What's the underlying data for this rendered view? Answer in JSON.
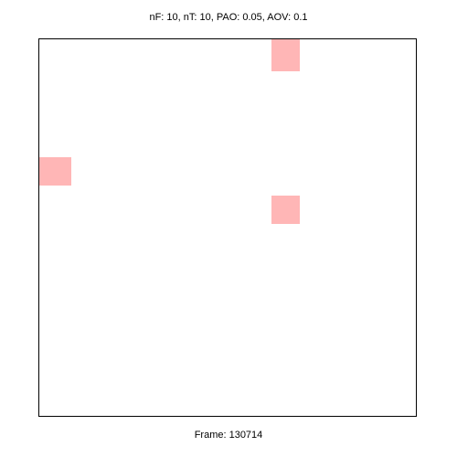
{
  "header": {
    "params_label": "nF: 10, nT: 10, PAO: 0.05, AOV: 0.1"
  },
  "footer": {
    "frame_label": "Frame: 130714"
  },
  "colors": {
    "cell_fill": "#ffb6b6",
    "frame_border": "#000000",
    "background": "#ffffff"
  }
}
